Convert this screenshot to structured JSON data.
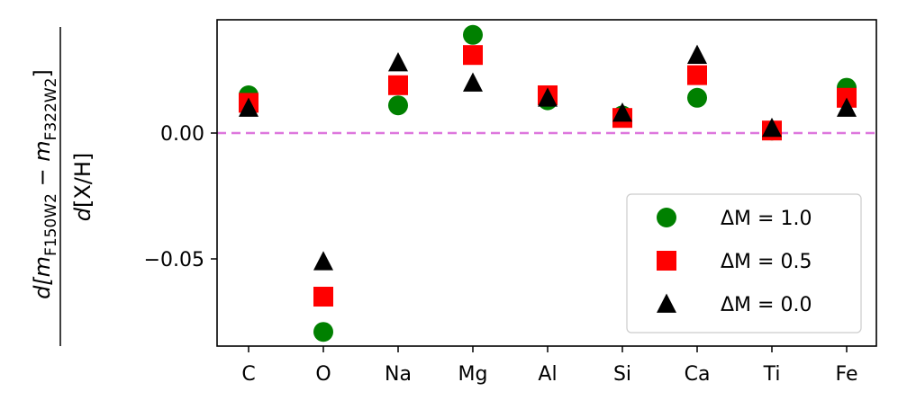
{
  "chart_data": {
    "type": "scatter",
    "title": "",
    "xlabel": "",
    "ylabel": {
      "numerator": "d[m_F150W2 − m_F322W2]",
      "denominator": "d[X/H]",
      "num_prefix": "d[",
      "m1": "m",
      "sub1": "F150W2",
      "minus": " − ",
      "m2": "m",
      "sub2": "F322W2",
      "num_suffix": "]",
      "den_prefix": "d",
      "den_rest": "[X/H]"
    },
    "categories": [
      "C",
      "O",
      "Na",
      "Mg",
      "Al",
      "Si",
      "Ca",
      "Ti",
      "Fe"
    ],
    "ylim": [
      -0.085,
      0.045
    ],
    "yticks": [
      0.0,
      -0.05
    ],
    "ytick_labels": [
      "0.00",
      "−0.05"
    ],
    "reference_line": {
      "y": 0.0,
      "style": "dashed",
      "color": "#dd77dd"
    },
    "legend_position": "lower-right",
    "series": [
      {
        "name": "ΔM = 1.0",
        "marker": "circle",
        "color": "#008000",
        "values": [
          0.015,
          -0.079,
          0.011,
          0.039,
          0.013,
          0.007,
          0.014,
          0.001,
          0.018
        ]
      },
      {
        "name": "ΔM = 0.5",
        "marker": "square",
        "color": "#ff0000",
        "values": [
          0.012,
          -0.065,
          0.019,
          0.031,
          0.015,
          0.006,
          0.023,
          0.001,
          0.014
        ]
      },
      {
        "name": "ΔM = 0.0",
        "marker": "triangle",
        "color": "#000000",
        "values": [
          0.01,
          -0.051,
          0.028,
          0.02,
          0.014,
          0.008,
          0.031,
          0.002,
          0.01
        ]
      }
    ]
  }
}
